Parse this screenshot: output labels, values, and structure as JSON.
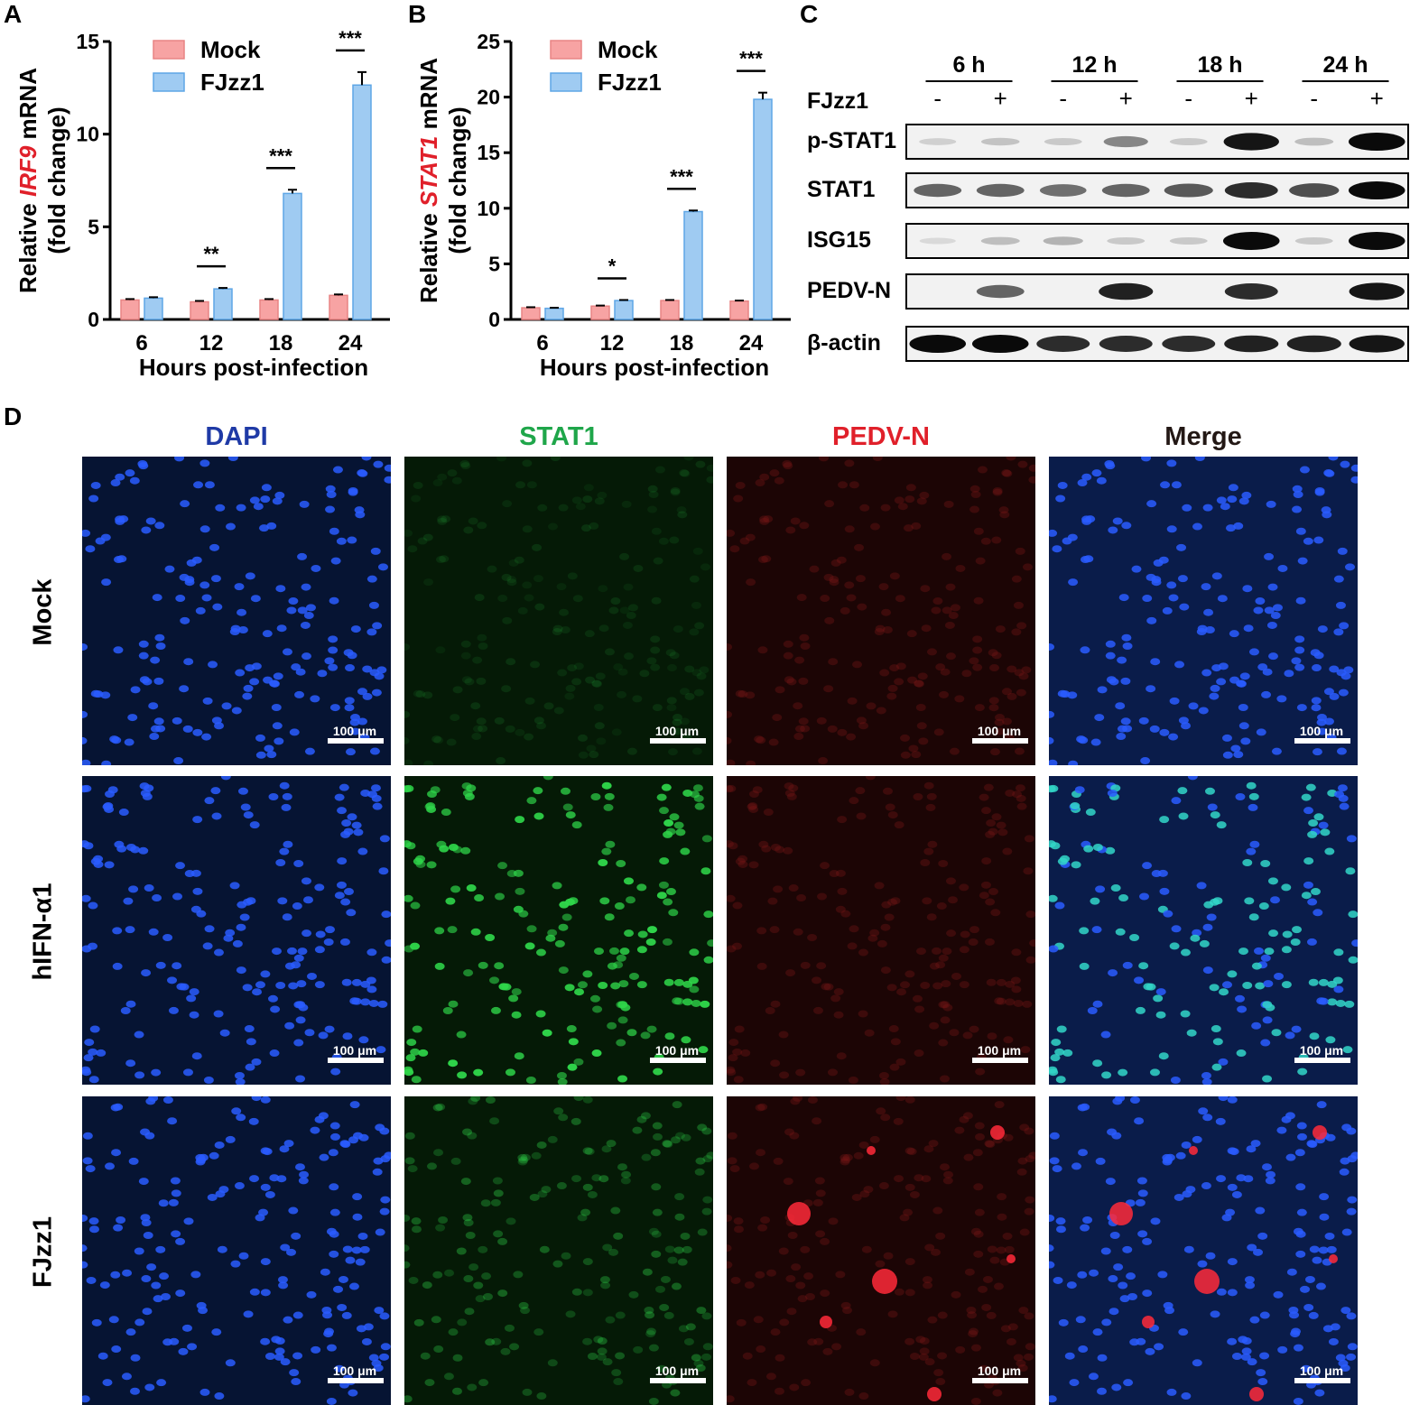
{
  "panels": {
    "A": "A",
    "B": "B",
    "C": "C",
    "D": "D"
  },
  "chart_data": [
    {
      "type": "bar",
      "panel": "A",
      "ylabel_pre": "Relative ",
      "ylabel_gene": "IRF9",
      "ylabel_post": " mRNA",
      "ylabel_line2": "(fold change)",
      "xlabel": "Hours post-infection",
      "categories": [
        "6",
        "12",
        "18",
        "24"
      ],
      "ylim": [
        0,
        15
      ],
      "yticks": [
        "0",
        "5",
        "10",
        "15"
      ],
      "legend_placement": "top-left",
      "series": [
        {
          "name": "Mock",
          "values": [
            1.05,
            0.95,
            1.05,
            1.3
          ],
          "errors": [
            0.05,
            0.05,
            0.05,
            0.05
          ],
          "color": "#f7a3a3",
          "edge": "#e88484"
        },
        {
          "name": "FJzz1",
          "values": [
            1.15,
            1.65,
            6.8,
            12.65
          ],
          "errors": [
            0.05,
            0.05,
            0.2,
            0.7
          ],
          "color": "#9fcbf2",
          "edge": "#5ea6e6"
        }
      ],
      "significance": [
        "",
        "**",
        "***",
        "***"
      ]
    },
    {
      "type": "bar",
      "panel": "B",
      "ylabel_pre": "Relative ",
      "ylabel_gene": "STAT1",
      "ylabel_post": " mRNA",
      "ylabel_line2": "(fold change)",
      "xlabel": "Hours post-infection",
      "categories": [
        "6",
        "12",
        "18",
        "24"
      ],
      "ylim": [
        0,
        25
      ],
      "yticks": [
        "0",
        "5",
        "10",
        "15",
        "20",
        "25"
      ],
      "legend_placement": "top-left",
      "series": [
        {
          "name": "Mock",
          "values": [
            1.05,
            1.2,
            1.7,
            1.65
          ],
          "errors": [
            0.05,
            0.05,
            0.05,
            0.05
          ],
          "color": "#f7a3a3",
          "edge": "#e88484"
        },
        {
          "name": "FJzz1",
          "values": [
            1.0,
            1.7,
            9.7,
            19.8
          ],
          "errors": [
            0.05,
            0.05,
            0.1,
            0.6
          ],
          "color": "#9fcbf2",
          "edge": "#5ea6e6"
        }
      ],
      "significance": [
        "",
        "*",
        "***",
        "***"
      ]
    }
  ],
  "blot": {
    "timepoints": [
      "6 h",
      "12 h",
      "18 h",
      "24 h"
    ],
    "treatment_label": "FJzz1",
    "signs": [
      "-",
      "+",
      "-",
      "+",
      "-",
      "+",
      "-",
      "+"
    ],
    "rows": [
      {
        "label": "p-STAT1",
        "intensities": [
          0.12,
          0.18,
          0.15,
          0.45,
          0.15,
          0.95,
          0.2,
          1.0
        ]
      },
      {
        "label": "STAT1",
        "intensities": [
          0.6,
          0.6,
          0.55,
          0.6,
          0.65,
          0.85,
          0.7,
          1.0
        ]
      },
      {
        "label": "ISG15",
        "intensities": [
          0.08,
          0.2,
          0.25,
          0.15,
          0.15,
          1.0,
          0.15,
          1.0
        ]
      },
      {
        "label": "PEDV-N",
        "intensities": [
          0.0,
          0.6,
          0.0,
          0.9,
          0.0,
          0.85,
          0.0,
          0.95
        ]
      },
      {
        "label": "β-actin",
        "intensities": [
          1.0,
          1.0,
          0.85,
          0.85,
          0.85,
          0.9,
          0.9,
          0.95
        ]
      }
    ]
  },
  "micrographs": {
    "columns": [
      {
        "label": "DAPI",
        "color": "#1f3aa6"
      },
      {
        "label": "STAT1",
        "color": "#1fa64a"
      },
      {
        "label": "PEDV-N",
        "color": "#e0202a"
      },
      {
        "label": "Merge",
        "color": "#231815"
      }
    ],
    "rows": [
      "Mock",
      "hIFN-α1",
      "FJzz1"
    ],
    "scale_bar": "100 μm"
  }
}
